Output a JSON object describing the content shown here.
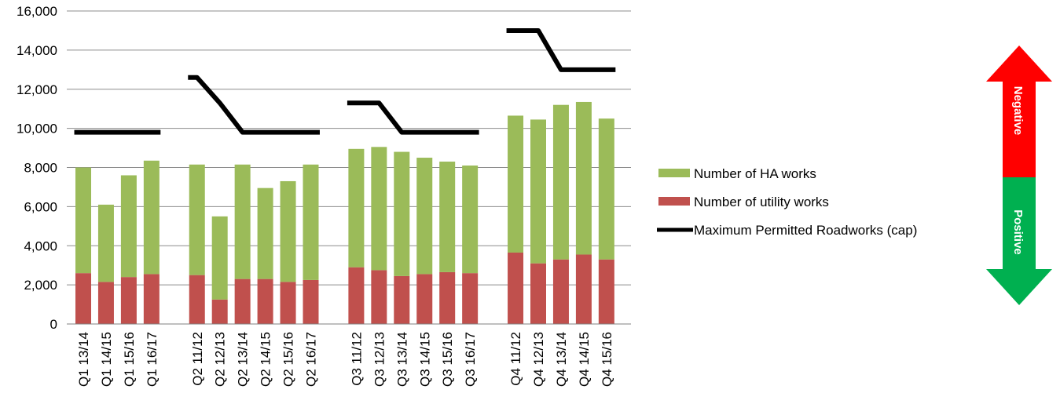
{
  "chart_data": {
    "type": "bar",
    "stacked": true,
    "categories": [
      "Q1 13/14",
      "Q1 14/15",
      "Q1 15/16",
      "Q1 16/17",
      "Q2 11/12",
      "Q2 12/13",
      "Q2 13/14",
      "Q2 14/15",
      "Q2 15/16",
      "Q2 16/17",
      "Q3 11/12",
      "Q3 12/13",
      "Q3 13/14",
      "Q3 14/15",
      "Q3 15/16",
      "Q3 16/17",
      "Q4 11/12",
      "Q4 12/13",
      "Q4 13/14",
      "Q4 14/15",
      "Q4 15/16"
    ],
    "groups": [
      4,
      6,
      6,
      5
    ],
    "series": [
      {
        "name": "Number of utility works",
        "color": "#c0504d",
        "values": [
          2600,
          2150,
          2400,
          2550,
          2500,
          1250,
          2300,
          2300,
          2150,
          2250,
          2900,
          2750,
          2450,
          2550,
          2650,
          2600,
          3650,
          3100,
          3300,
          3550,
          3300
        ]
      },
      {
        "name": "Number of HA works",
        "color": "#9bbb59",
        "values": [
          5400,
          3950,
          5200,
          5800,
          5650,
          4250,
          5850,
          4650,
          5150,
          5900,
          6050,
          6300,
          6350,
          5950,
          5650,
          5500,
          7000,
          7350,
          7900,
          7800,
          7200
        ]
      }
    ],
    "cap_series": {
      "name": "Maximum Permitted Roadworks (cap)",
      "color": "#000000",
      "values": [
        9800,
        9800,
        9800,
        9800,
        12600,
        11300,
        9800,
        9800,
        9800,
        9800,
        11300,
        11300,
        9800,
        9800,
        9800,
        9800,
        15000,
        15000,
        13000,
        13000,
        13000
      ]
    },
    "y_ticks": [
      "0",
      "2,000",
      "4,000",
      "6,000",
      "8,000",
      "10,000",
      "12,000",
      "14,000",
      "16,000"
    ],
    "ylim": [
      0,
      16000
    ],
    "grid": true,
    "legend_position": "right",
    "legend_entries": [
      "Number of HA works",
      "Number of utility works",
      "Maximum Permitted Roadworks (cap)"
    ]
  },
  "indicator": {
    "top_label": "Negative",
    "bottom_label": "Positive",
    "top_color": "#ff0000",
    "bottom_color": "#00b050"
  }
}
